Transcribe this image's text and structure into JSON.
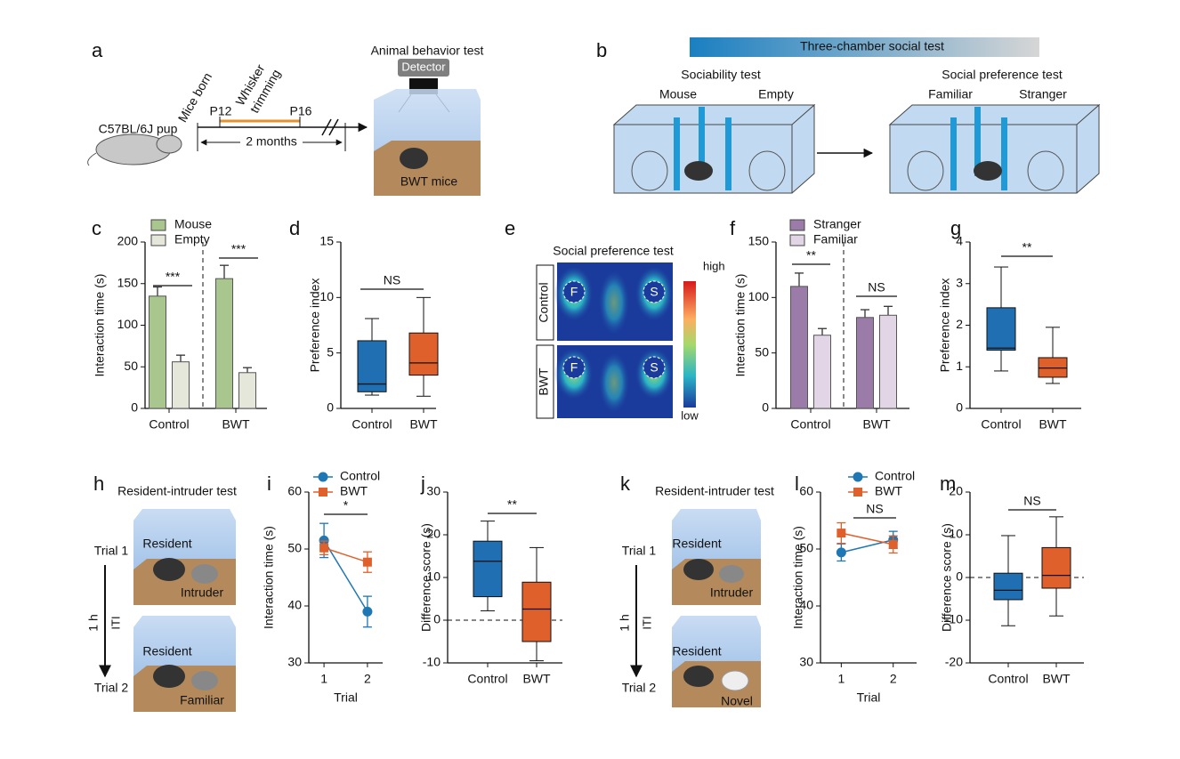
{
  "diagram_a": {
    "label": "a",
    "pup": "C57BL/6J pup",
    "born": "Mice born",
    "p12": "P12",
    "whisker": [
      "Whisker",
      "trimming"
    ],
    "p16": "P16",
    "duration": "2 months",
    "test": "Animal behavior test",
    "detector": "Detector",
    "mice": "BWT  mice"
  },
  "diagram_b": {
    "label": "b",
    "title": "Three-chamber social test",
    "left_title": "Sociability test",
    "left_a": "Mouse",
    "left_b": "Empty",
    "right_title": "Social preference test",
    "right_a": "Familiar",
    "right_b": "Stranger"
  },
  "diagram_e": {
    "label": "e",
    "title": "Social preference test",
    "rows": [
      "Control",
      "BWT"
    ],
    "left": "F",
    "right": "S",
    "high": "high",
    "low": "low"
  },
  "diagram_h": {
    "label": "h",
    "title": "Resident-intruder test",
    "trial1": "Trial 1",
    "trial2": "Trial 2",
    "interval": "1 h",
    "iti": "ITI",
    "resident": "Resident",
    "intruder": "Intruder",
    "second": "Familiar"
  },
  "diagram_k": {
    "label": "k",
    "title": "Resident-intruder test",
    "trial1": "Trial 1",
    "trial2": "Trial 2",
    "interval": "1 h",
    "iti": "ITI",
    "resident": "Resident",
    "intruder": "Intruder",
    "second": "Novel"
  },
  "chart_data": [
    {
      "label": "c",
      "type": "bar",
      "ylabel": "Interaction time (s)",
      "categories": [
        "Control",
        "BWT"
      ],
      "series": [
        {
          "name": "Mouse",
          "color": "#a9c68f",
          "values": [
            135,
            156
          ],
          "errors": [
            11,
            16
          ]
        },
        {
          "name": "Empty",
          "color": "#e4e7da",
          "values": [
            56,
            43
          ],
          "errors": [
            8,
            6
          ]
        }
      ],
      "ylim": [
        0,
        200
      ],
      "yticks": [
        0,
        50,
        100,
        150,
        200
      ],
      "annotations": [
        "***",
        "***"
      ],
      "divider": true
    },
    {
      "label": "d",
      "type": "box",
      "ylabel": "Preference index",
      "categories": [
        "Control",
        "BWT"
      ],
      "colors": [
        "#1f6fb2",
        "#e0602b"
      ],
      "boxes": [
        {
          "min": 1.2,
          "q1": 1.5,
          "median": 2.2,
          "q3": 6.1,
          "max": 8.1
        },
        {
          "min": 1.1,
          "q1": 3.0,
          "median": 4.1,
          "q3": 6.8,
          "max": 10.0
        }
      ],
      "ylim": [
        0,
        15
      ],
      "yticks": [
        0,
        5,
        10,
        15
      ],
      "annotations": [
        "NS"
      ]
    },
    {
      "label": "f",
      "type": "bar",
      "ylabel": "Interaction time (s)",
      "categories": [
        "Control",
        "BWT"
      ],
      "series": [
        {
          "name": "Stranger",
          "color": "#9b7ba8",
          "values": [
            110,
            82
          ],
          "errors": [
            12,
            7
          ]
        },
        {
          "name": "Familiar",
          "color": "#e2d5e6",
          "values": [
            66,
            84
          ],
          "errors": [
            6,
            8
          ]
        }
      ],
      "ylim": [
        0,
        150
      ],
      "yticks": [
        0,
        50,
        100,
        150
      ],
      "annotations": [
        "**",
        "NS"
      ],
      "divider": true
    },
    {
      "label": "g",
      "type": "box",
      "ylabel": "Preference index",
      "categories": [
        "Control",
        "BWT"
      ],
      "colors": [
        "#1f6fb2",
        "#e0602b"
      ],
      "boxes": [
        {
          "min": 0.9,
          "q1": 1.4,
          "median": 1.45,
          "q3": 2.42,
          "max": 3.4
        },
        {
          "min": 0.6,
          "q1": 0.75,
          "median": 0.97,
          "q3": 1.22,
          "max": 1.95
        }
      ],
      "ylim": [
        0,
        4
      ],
      "yticks": [
        0,
        1,
        2,
        3,
        4
      ],
      "annotations": [
        "**"
      ]
    },
    {
      "label": "i",
      "type": "line",
      "ylabel": "Interaction time (s)",
      "xlabel": "Trial",
      "x": [
        1,
        2
      ],
      "series": [
        {
          "name": "Control",
          "color": "#1f77b4",
          "marker": "circle",
          "values": [
            51.5,
            39
          ],
          "errors": [
            3,
            2.7
          ]
        },
        {
          "name": "BWT",
          "color": "#e0602b",
          "marker": "square",
          "values": [
            50.2,
            47.7
          ],
          "errors": [
            1.2,
            1.8
          ]
        }
      ],
      "xlim": [
        0.65,
        2.35
      ],
      "xticks": [
        1,
        2
      ],
      "ylim": [
        30,
        60
      ],
      "yticks": [
        30,
        40,
        50,
        60
      ],
      "annotations": [
        "*"
      ]
    },
    {
      "label": "j",
      "type": "box",
      "ylabel": "Difference score (s)",
      "categories": [
        "Control",
        "BWT"
      ],
      "colors": [
        "#1f6fb2",
        "#e0602b"
      ],
      "boxes": [
        {
          "min": 2.2,
          "q1": 5.5,
          "median": 13.8,
          "q3": 18.5,
          "max": 23.2
        },
        {
          "min": -9.5,
          "q1": -5,
          "median": 2.6,
          "q3": 8.9,
          "max": 17
        }
      ],
      "ylim": [
        -10,
        30
      ],
      "yticks": [
        -10,
        0,
        10,
        20,
        30
      ],
      "annotations": [
        "**"
      ],
      "zero_line": true
    },
    {
      "label": "l",
      "type": "line",
      "ylabel": "Interaction time (s)",
      "xlabel": "Trial",
      "x": [
        1,
        2
      ],
      "series": [
        {
          "name": "Control",
          "color": "#1f77b4",
          "marker": "circle",
          "values": [
            49.4,
            51.6
          ],
          "errors": [
            1.5,
            1.5
          ]
        },
        {
          "name": "BWT",
          "color": "#e0602b",
          "marker": "square",
          "values": [
            52.8,
            50.8
          ],
          "errors": [
            1.8,
            1.5
          ]
        }
      ],
      "xlim": [
        0.6,
        2.45
      ],
      "xticks": [
        1,
        2
      ],
      "ylim": [
        30,
        60
      ],
      "yticks": [
        30,
        40,
        50,
        60
      ],
      "annotations": [
        "NS"
      ]
    },
    {
      "label": "m",
      "type": "box",
      "ylabel": "Difference score (s)",
      "categories": [
        "Control",
        "BWT"
      ],
      "colors": [
        "#1f6fb2",
        "#e0602b"
      ],
      "boxes": [
        {
          "min": -11.3,
          "q1": -5.2,
          "median": -3,
          "q3": 1,
          "max": 9.8
        },
        {
          "min": -9,
          "q1": -2.5,
          "median": 0.5,
          "q3": 7,
          "max": 14.2
        }
      ],
      "ylim": [
        -20,
        20
      ],
      "yticks": [
        -20,
        -10,
        0,
        10,
        20
      ],
      "annotations": [
        "NS"
      ],
      "zero_line": true
    }
  ]
}
